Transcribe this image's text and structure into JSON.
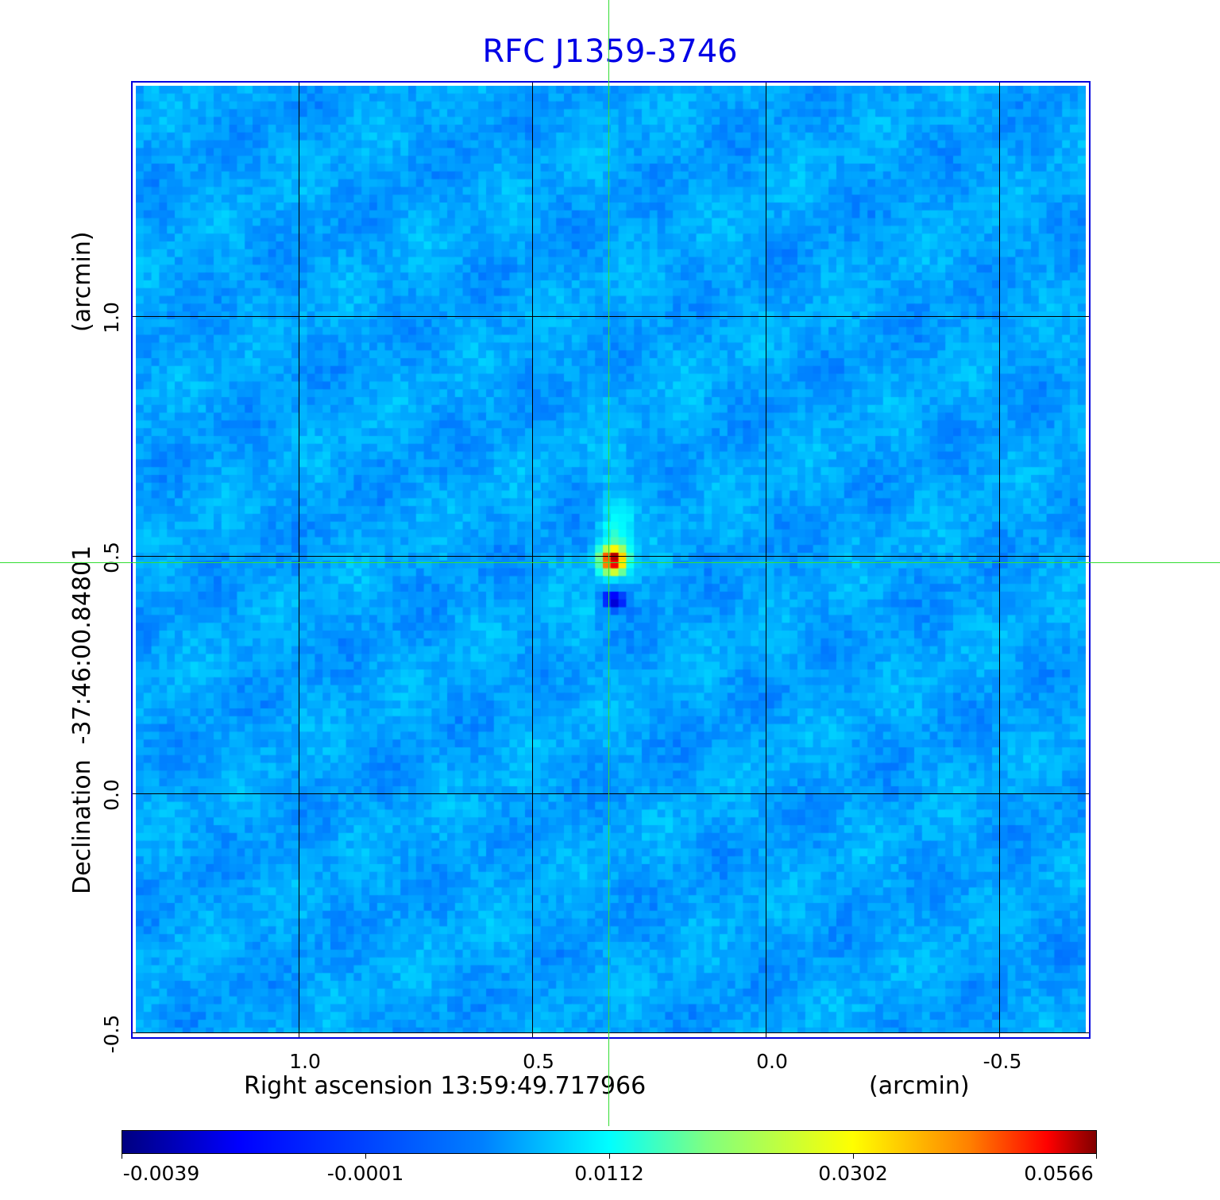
{
  "chart_data": {
    "type": "heatmap",
    "title": "RFC J1359-3746",
    "xlabel": "Right ascension  13:59:49.717966",
    "xunit": "(arcmin)",
    "ylabel": "Declination  -37:46:00.84801",
    "yunit": "(arcmin)",
    "x_ticks": [
      "1.0",
      "0.5",
      "0.0",
      "-0.5"
    ],
    "y_ticks": [
      "1.0",
      "0.5",
      "0.0",
      "-0.5"
    ],
    "xlim": [
      1.36,
      -0.69
    ],
    "ylim": [
      -0.51,
      1.5
    ],
    "grid": true,
    "colormap": "jet",
    "colorbar_ticks": [
      "-0.0039",
      "-0.0001",
      "0.0112",
      "0.0302",
      "0.0566"
    ],
    "source_peak": {
      "x": 0.34,
      "y": 0.5,
      "value": 0.0566
    },
    "crosshair": {
      "x": 0.335,
      "y": 0.487
    }
  },
  "colors": {
    "title": "#0000e6",
    "frame": "#0000dd",
    "crosshair": "#33dd33"
  }
}
